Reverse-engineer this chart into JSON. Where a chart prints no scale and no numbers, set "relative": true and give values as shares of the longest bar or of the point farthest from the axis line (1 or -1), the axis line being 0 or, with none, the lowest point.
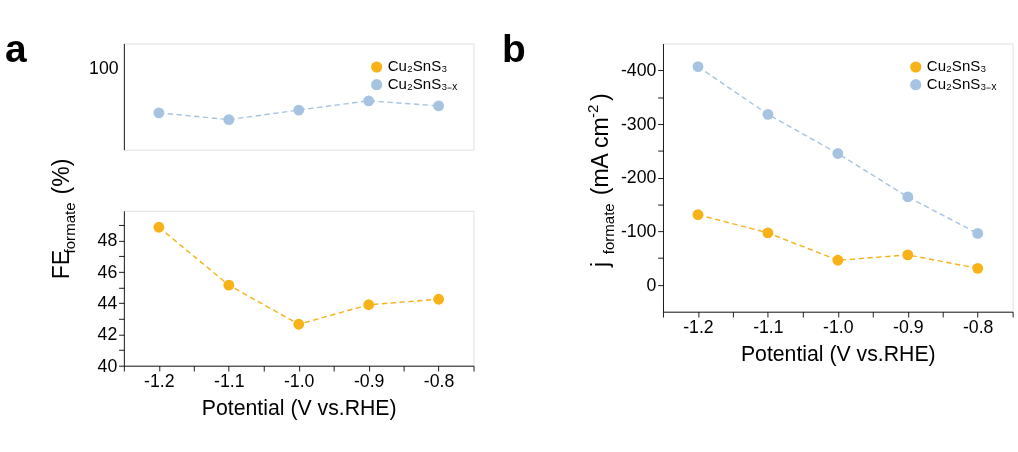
{
  "chart_data": [
    {
      "type": "line",
      "title": "a",
      "categories": [
        null,
        null,
        null,
        null,
        null
      ],
      "relative": true,
      "annotations": [
        "100"
      ],
      "legend": "top right",
      "marker": "circle",
      "line_style": "dashed",
      "grid": false,
      "series": [
        {
          "name": "Cu₂SnS₃",
          "color": "#f7b217",
          "values": [
            null,
            null,
            null,
            null,
            null
          ]
        },
        {
          "name": "Cu₂SnS₃₋ₓ",
          "color": "#a6c4e2",
          "values": [
            0.754,
            0.615,
            0.811,
            1,
            0.897
          ]
        }
      ]
    },
    {
      "type": "line",
      "x": [
        -1.2,
        -1.1,
        -1.0,
        -0.9,
        -0.8
      ],
      "xlabel": "Potential (V vs.RHE)",
      "ylabel": "FE$_{formate}$(%)",
      "xlim": [
        -1.25,
        -0.75
      ],
      "xticks": [
        {
          "value": -1.25,
          "label": null
        },
        -1.2,
        {
          "value": -1.15,
          "label": null
        },
        -1.1,
        {
          "value": -1.05,
          "label": null
        },
        {
          "value": -1.0,
          "label": "-1.0"
        },
        {
          "value": -0.95,
          "label": null
        },
        -0.9,
        {
          "value": -0.85,
          "label": null
        },
        -0.8,
        {
          "value": -0.75,
          "label": null
        }
      ],
      "ylim": [
        40,
        49.9
      ],
      "yticks": [
        40,
        {
          "value": 41,
          "label": null
        },
        42,
        {
          "value": 43,
          "label": null
        },
        44,
        {
          "value": 45,
          "label": null
        },
        46,
        {
          "value": 47,
          "label": null
        },
        48,
        {
          "value": 49,
          "label": null
        }
      ],
      "marker": "circle",
      "line_style": "dashed",
      "grid": false,
      "series": [
        {
          "color": "#f7b217",
          "values": [
            48.85,
            45.15,
            42.65,
            43.9,
            44.25
          ]
        }
      ]
    },
    {
      "type": "line",
      "title": "b",
      "x": [
        -1.2,
        -1.1,
        -1.0,
        -0.9,
        -0.8
      ],
      "xlabel": "Potential (V vs.RHE)",
      "ylabel": "j$_{formate}$(mA cm$^{-2}$)",
      "xlim": [
        -1.25,
        -0.75
      ],
      "xticks": [
        {
          "value": -1.25,
          "label": null
        },
        -1.2,
        {
          "value": -1.15,
          "label": null
        },
        -1.1,
        {
          "value": -1.05,
          "label": null
        },
        {
          "value": -1.0,
          "label": "-1.0"
        },
        {
          "value": -0.95,
          "label": null
        },
        -0.9,
        {
          "value": -0.85,
          "label": null
        },
        -0.8,
        {
          "value": -0.75,
          "label": null
        }
      ],
      "ylim": [
        50,
        -450
      ],
      "yticks": [
        0,
        {
          "value": -50,
          "label": null
        },
        -100,
        {
          "value": -150,
          "label": null
        },
        -200,
        {
          "value": -250,
          "label": null
        },
        -300,
        {
          "value": -350,
          "label": null
        },
        -400
      ],
      "legend": "top right",
      "marker": "circle",
      "line_style": "dashed",
      "grid": false,
      "series": [
        {
          "name": "Cu₂SnS₃",
          "color": "#f7b217",
          "values": [
            -131,
            -97,
            -46,
            -56,
            -31
          ]
        },
        {
          "name": "Cu₂SnS₃₋ₓ",
          "color": "#a6c4e2",
          "values": [
            -407,
            -318,
            -245,
            -164,
            -96
          ]
        }
      ]
    }
  ]
}
